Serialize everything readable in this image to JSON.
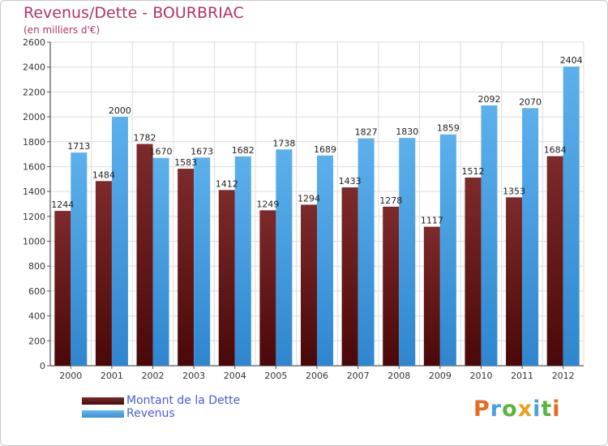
{
  "header": {
    "title": "Revenus/Dette - BOURBRIAC",
    "subtitle": "(en milliers d'€)"
  },
  "legend": {
    "debt_label": "Montant de la Dette",
    "revenue_label": "Revenus"
  },
  "logo": {
    "text": "Proxiti"
  },
  "colors": {
    "debt": "#6b1515",
    "revenue": "#4aa3e6",
    "title": "#b0336a",
    "legend_text": "#4a5ad8",
    "grid": "#dcdcdc"
  },
  "chart_data": {
    "type": "bar",
    "title": "Revenus/Dette - BOURBRIAC",
    "subtitle": "(en milliers d'€)",
    "categories": [
      "2000",
      "2001",
      "2002",
      "2003",
      "2004",
      "2005",
      "2006",
      "2007",
      "2008",
      "2009",
      "2010",
      "2011",
      "2012"
    ],
    "series": [
      {
        "name": "Montant de la Dette",
        "values": [
          1244,
          1484,
          1782,
          1583,
          1412,
          1249,
          1294,
          1433,
          1278,
          1117,
          1512,
          1353,
          1684
        ]
      },
      {
        "name": "Revenus",
        "values": [
          1713,
          2000,
          1670,
          1673,
          1682,
          1738,
          1689,
          1827,
          1830,
          1859,
          2092,
          2070,
          2404
        ]
      }
    ],
    "ylim": [
      0,
      2600
    ],
    "yticks": [
      0,
      200,
      400,
      600,
      800,
      1000,
      1200,
      1400,
      1600,
      1800,
      2000,
      2200,
      2400,
      2600
    ],
    "grid": true,
    "legend_position": "bottom-left"
  }
}
